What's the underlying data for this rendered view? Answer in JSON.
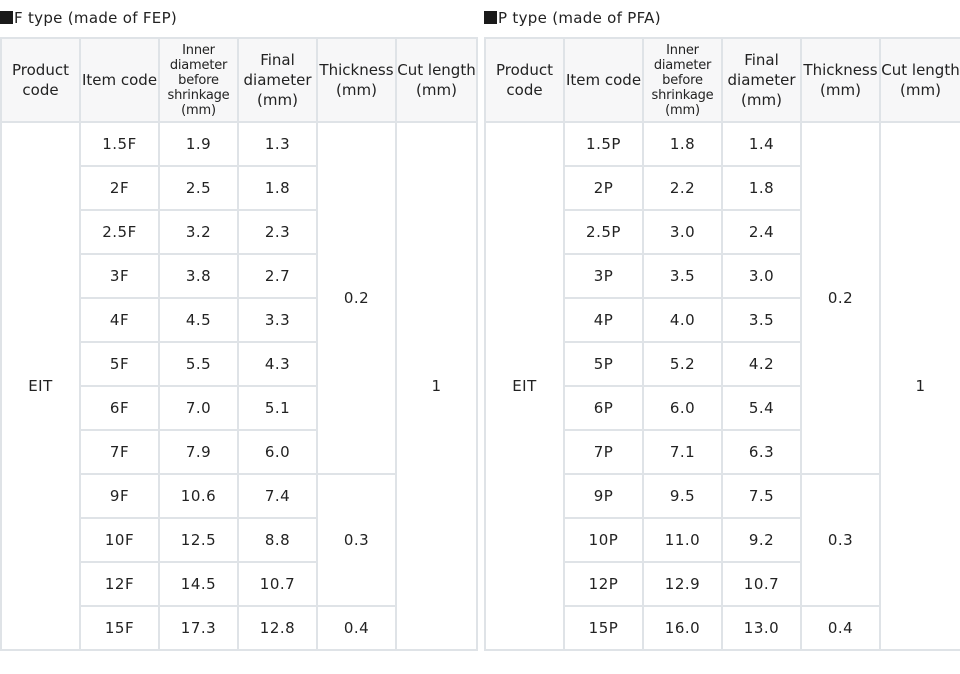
{
  "headers": {
    "product_code": "Product code",
    "item_code": "Item code",
    "inner_diameter": "Inner diameter before shrinkage (mm)",
    "final_diameter": "Final diameter (mm)",
    "thickness": "Thickness (mm)",
    "cut_length": "Cut length (mm)"
  },
  "f_type": {
    "title": "F type (made of FEP)",
    "product_code": "EIT",
    "cut_length": "1",
    "thickness_groups": [
      {
        "value": "0.2",
        "rows": 8
      },
      {
        "value": "0.3",
        "rows": 3
      },
      {
        "value": "0.4",
        "rows": 1
      }
    ],
    "rows": [
      {
        "item": "1.5F",
        "inner": "1.9",
        "final": "1.3"
      },
      {
        "item": "2F",
        "inner": "2.5",
        "final": "1.8"
      },
      {
        "item": "2.5F",
        "inner": "3.2",
        "final": "2.3"
      },
      {
        "item": "3F",
        "inner": "3.8",
        "final": "2.7"
      },
      {
        "item": "4F",
        "inner": "4.5",
        "final": "3.3"
      },
      {
        "item": "5F",
        "inner": "5.5",
        "final": "4.3"
      },
      {
        "item": "6F",
        "inner": "7.0",
        "final": "5.1"
      },
      {
        "item": "7F",
        "inner": "7.9",
        "final": "6.0"
      },
      {
        "item": "9F",
        "inner": "10.6",
        "final": "7.4"
      },
      {
        "item": "10F",
        "inner": "12.5",
        "final": "8.8"
      },
      {
        "item": "12F",
        "inner": "14.5",
        "final": "10.7"
      },
      {
        "item": "15F",
        "inner": "17.3",
        "final": "12.8"
      }
    ]
  },
  "p_type": {
    "title": "P type (made of PFA)",
    "product_code": "EIT",
    "cut_length": "1",
    "thickness_groups": [
      {
        "value": "0.2",
        "rows": 8
      },
      {
        "value": "0.3",
        "rows": 3
      },
      {
        "value": "0.4",
        "rows": 1
      }
    ],
    "rows": [
      {
        "item": "1.5P",
        "inner": "1.8",
        "final": "1.4"
      },
      {
        "item": "2P",
        "inner": "2.2",
        "final": "1.8"
      },
      {
        "item": "2.5P",
        "inner": "3.0",
        "final": "2.4"
      },
      {
        "item": "3P",
        "inner": "3.5",
        "final": "3.0"
      },
      {
        "item": "4P",
        "inner": "4.0",
        "final": "3.5"
      },
      {
        "item": "5P",
        "inner": "5.2",
        "final": "4.2"
      },
      {
        "item": "6P",
        "inner": "6.0",
        "final": "5.4"
      },
      {
        "item": "7P",
        "inner": "7.1",
        "final": "6.3"
      },
      {
        "item": "9P",
        "inner": "9.5",
        "final": "7.5"
      },
      {
        "item": "10P",
        "inner": "11.0",
        "final": "9.2"
      },
      {
        "item": "12P",
        "inner": "12.9",
        "final": "10.7"
      },
      {
        "item": "15P",
        "inner": "16.0",
        "final": "13.0"
      }
    ]
  }
}
